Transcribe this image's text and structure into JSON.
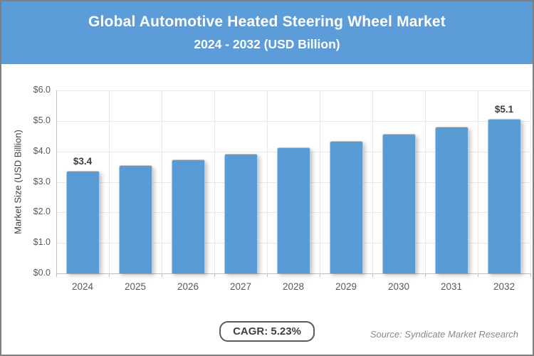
{
  "header": {
    "title_line1": "Global Automotive Heated Steering Wheel Market",
    "title_line2": "2024 - 2032 (USD Billion)"
  },
  "chart_data": {
    "type": "bar",
    "title": "Global Automotive Heated Steering Wheel Market 2024 - 2032 (USD Billion)",
    "categories": [
      "2024",
      "2025",
      "2026",
      "2027",
      "2028",
      "2029",
      "2030",
      "2031",
      "2032"
    ],
    "values": [
      3.37,
      3.55,
      3.73,
      3.93,
      4.13,
      4.35,
      4.57,
      4.81,
      5.07
    ],
    "point_labels": [
      {
        "index": 0,
        "text": "$3.4"
      },
      {
        "index": 8,
        "text": "$5.1"
      }
    ],
    "xlabel": "",
    "ylabel": "Market Size (USD Billion)",
    "ylim": [
      0,
      6
    ],
    "ytick_labels": [
      "$0.0",
      "$1.0",
      "$2.0",
      "$3.0",
      "$4.0",
      "$5.0",
      "$6.0"
    ],
    "grid": true,
    "legend": false,
    "bar_color": "#5b9bd5"
  },
  "footer": {
    "cagr_label": "CAGR: 5.23%",
    "source": "Source: Syndicate Market Research"
  },
  "colors": {
    "header_bg": "#5b9cd9",
    "bar": "#5b9bd5",
    "gridline": "#e8e8e8",
    "axis_line": "#bfbfbf",
    "tick_text": "#595959",
    "data_label_text": "#3d3d3d",
    "source_text": "#7f8c8d"
  }
}
